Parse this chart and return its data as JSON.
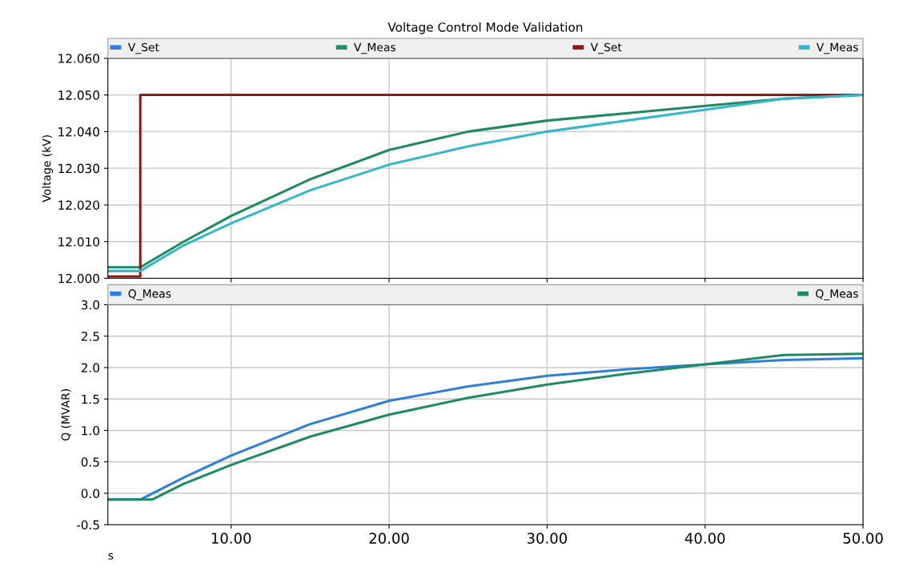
{
  "chart_data": [
    {
      "type": "line",
      "title": "Voltage Control Mode Validation",
      "ylabel": "Voltage (kV)",
      "legend": "top",
      "grid": true,
      "tick_labels": "y",
      "marker": "none",
      "line_style": "solid",
      "xlim": [
        2.2,
        50
      ],
      "xticks": [
        10,
        20,
        30,
        40,
        50
      ],
      "ylim": [
        12.0,
        12.06
      ],
      "yticks": [
        {
          "value": 12.0,
          "label": "12.000"
        },
        {
          "value": 12.01,
          "label": "12.010"
        },
        {
          "value": 12.02,
          "label": "12.020"
        },
        {
          "value": 12.03,
          "label": "12.030"
        },
        {
          "value": 12.04,
          "label": "12.040"
        },
        {
          "value": 12.05,
          "label": "12.050"
        },
        {
          "value": 12.06,
          "label": "12.060"
        }
      ],
      "series": [
        {
          "name": "V_Set",
          "color": "#2f7fd8"
        },
        {
          "name": "V_Meas",
          "color": "#1f8a64",
          "x": [
            2.2,
            4.25,
            7,
            10,
            15,
            20,
            25,
            30,
            35,
            40,
            45,
            50
          ],
          "values": [
            12.003,
            12.003,
            12.01,
            12.017,
            12.027,
            12.035,
            12.04,
            12.043,
            12.045,
            12.047,
            12.049,
            12.05
          ]
        },
        {
          "name": "V_Set",
          "color": "#8b1a1a",
          "x": [
            2.2,
            4.25,
            4.25,
            50
          ],
          "values": [
            12.0005,
            12.0005,
            12.05,
            12.05
          ]
        },
        {
          "name": "V_Meas",
          "color": "#36b8c8",
          "x": [
            2.2,
            4.25,
            7,
            10,
            15,
            20,
            25,
            30,
            35,
            40,
            45,
            50
          ],
          "values": [
            12.002,
            12.002,
            12.009,
            12.015,
            12.024,
            12.031,
            12.036,
            12.04,
            12.043,
            12.046,
            12.049,
            12.05
          ]
        }
      ]
    },
    {
      "type": "line",
      "ylabel": "Q (MVAR)",
      "xlabel": "s",
      "legend": "top",
      "grid": true,
      "marker": "none",
      "line_style": "solid",
      "xlim": [
        2.2,
        50
      ],
      "xticks": [
        {
          "value": 10,
          "label": "10.00"
        },
        {
          "value": 20,
          "label": "20.00"
        },
        {
          "value": 30,
          "label": "30.00"
        },
        {
          "value": 40,
          "label": "40.00"
        },
        {
          "value": 50,
          "label": "50.00"
        }
      ],
      "ylim": [
        -0.5,
        3.0
      ],
      "yticks": [
        {
          "value": -0.5,
          "label": "-0.5"
        },
        {
          "value": 0,
          "label": "0.0"
        },
        {
          "value": 0.5,
          "label": "0.5"
        },
        {
          "value": 1.0,
          "label": "1.0"
        },
        {
          "value": 1.5,
          "label": "1.5"
        },
        {
          "value": 2.0,
          "label": "2.0"
        },
        {
          "value": 2.5,
          "label": "2.5"
        },
        {
          "value": 3.0,
          "label": "3.0"
        }
      ],
      "series": [
        {
          "name": "Q_Meas",
          "color": "#2f7fd8",
          "x": [
            2.2,
            4.25,
            7,
            10,
            15,
            20,
            25,
            30,
            35,
            40,
            45,
            50
          ],
          "values": [
            -0.1,
            -0.1,
            0.25,
            0.6,
            1.1,
            1.47,
            1.7,
            1.87,
            1.97,
            2.05,
            2.12,
            2.15
          ]
        },
        {
          "name": "Q_Meas",
          "color": "#1f8a64",
          "x": [
            2.2,
            5.0,
            7,
            10,
            15,
            20,
            25,
            30,
            35,
            40,
            45,
            50
          ],
          "values": [
            -0.1,
            -0.1,
            0.15,
            0.45,
            0.9,
            1.25,
            1.52,
            1.73,
            1.9,
            2.05,
            2.2,
            2.22
          ]
        }
      ]
    }
  ]
}
